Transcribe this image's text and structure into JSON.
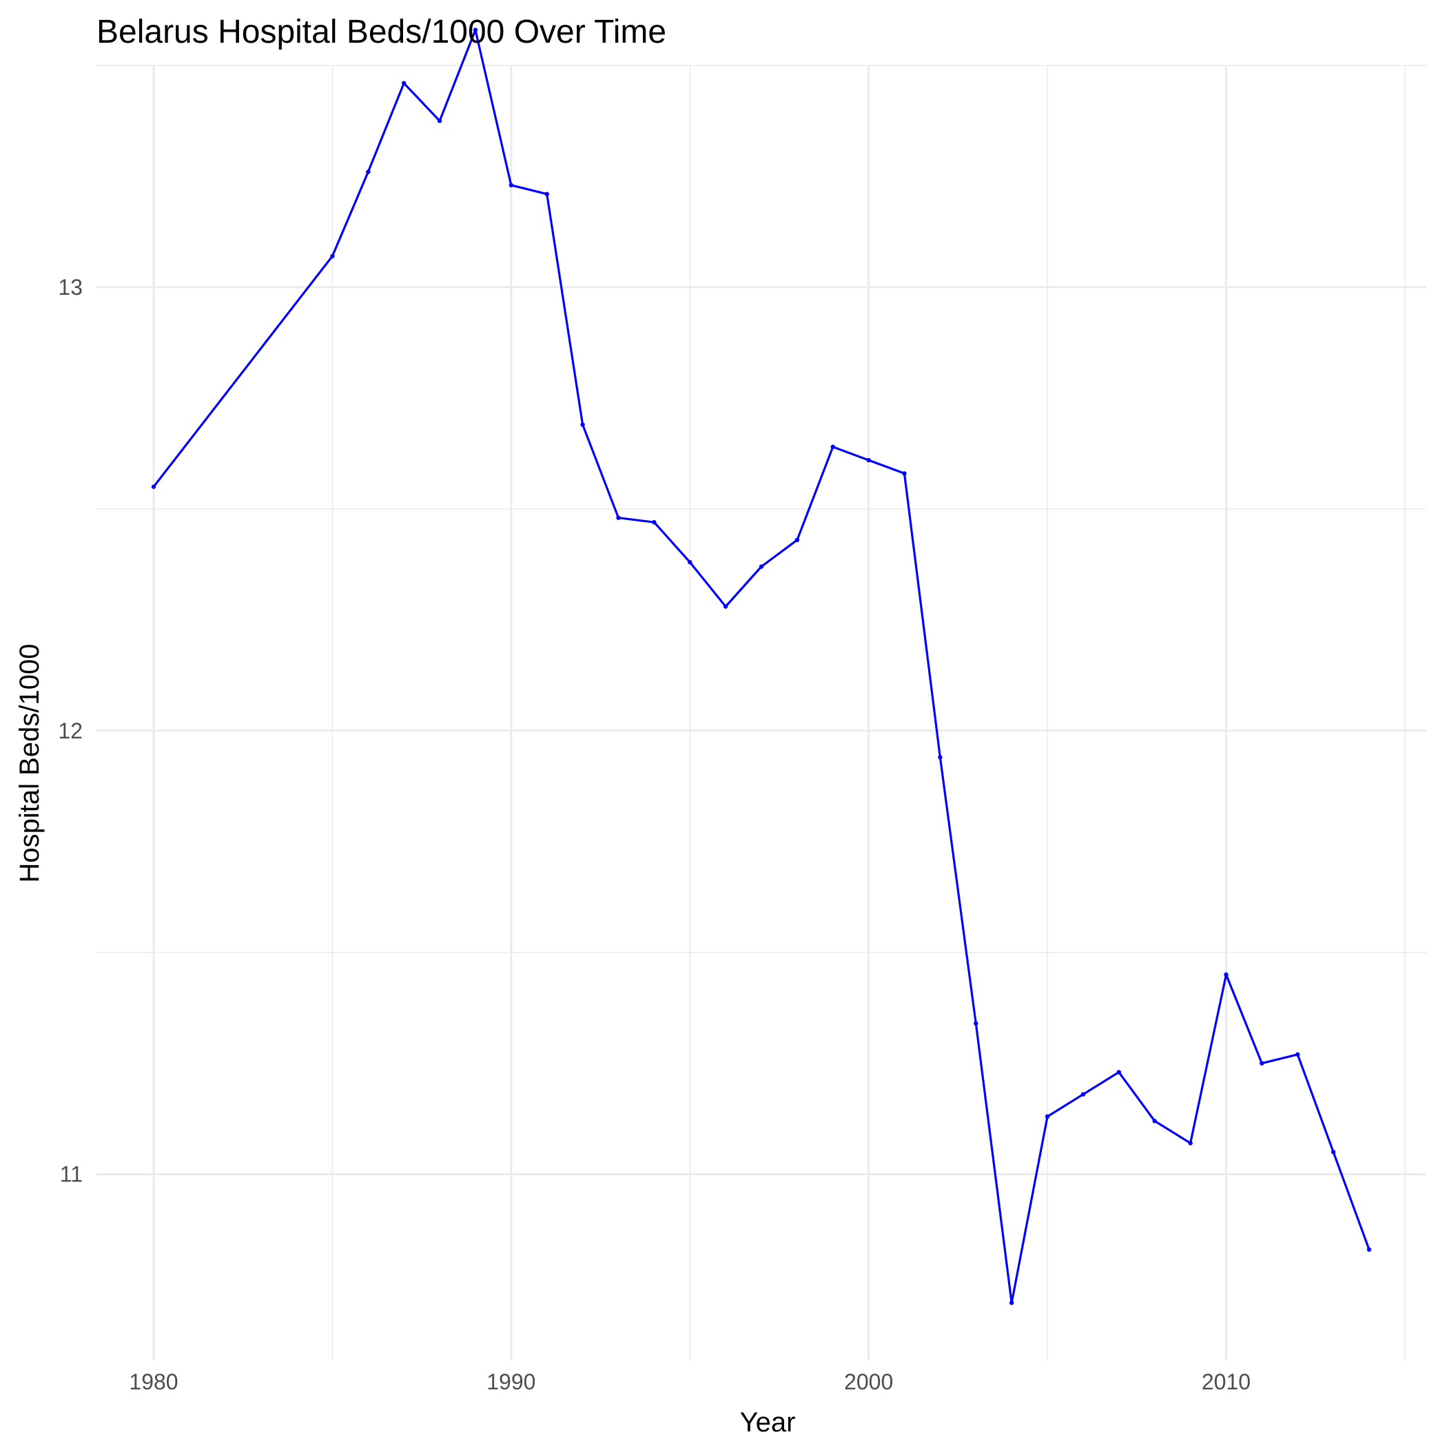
{
  "chart_data": {
    "type": "line",
    "title": "Belarus Hospital Beds/1000 Over Time",
    "xlabel": "Year",
    "ylabel": "Hospital Beds/1000",
    "x_ticks": [
      "1980",
      "1990",
      "2000",
      "2010"
    ],
    "y_ticks": [
      "11",
      "12",
      "13"
    ],
    "xlim": [
      1978.4,
      2015.6
    ],
    "ylim": [
      10.58,
      13.5
    ],
    "grid": true,
    "legend": "none",
    "series": [
      {
        "color": "#0000ff",
        "x": [
          1980,
          1985,
          1986,
          1987,
          1988,
          1989,
          1990,
          1991,
          1992,
          1993,
          1994,
          1995,
          1996,
          1997,
          1998,
          1999,
          2000,
          2001,
          2002,
          2003,
          2004,
          2005,
          2006,
          2007,
          2008,
          2009,
          2010,
          2011,
          2012,
          2013,
          2014
        ],
        "y": [
          12.55,
          13.07,
          13.26,
          13.46,
          13.375,
          13.58,
          13.23,
          13.21,
          12.69,
          12.48,
          12.47,
          12.38,
          12.28,
          12.37,
          12.43,
          12.64,
          12.61,
          12.58,
          11.94,
          11.34,
          10.71,
          11.13,
          11.18,
          11.23,
          11.12,
          11.07,
          11.45,
          11.25,
          11.27,
          11.05,
          10.83
        ]
      }
    ]
  }
}
